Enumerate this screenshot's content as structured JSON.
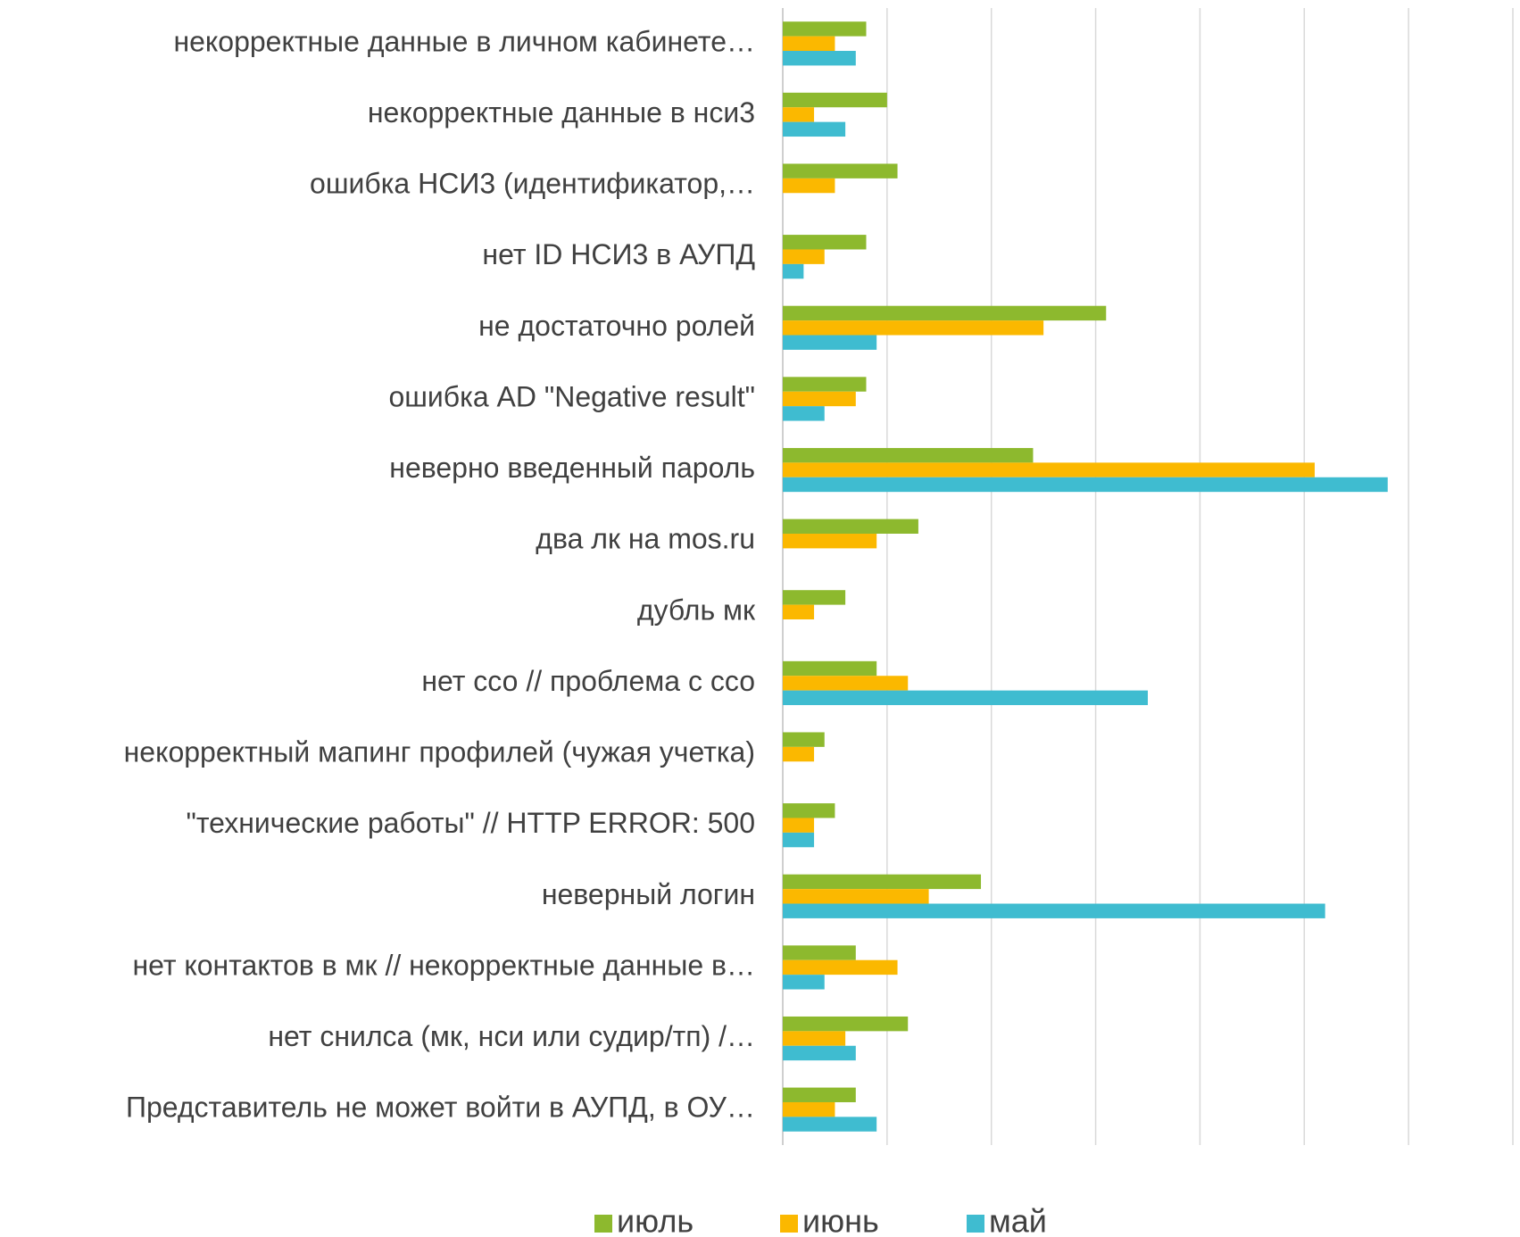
{
  "chart_data": {
    "type": "hbar",
    "categories": [
      "некорректные данные в личном кабинете…",
      "некорректные данные в нси3",
      "ошибка НСИ3 (идентификатор,…",
      "нет ID НСИ3 в АУПД",
      "не достаточно ролей",
      "ошибка AD \"Negative result\"",
      "неверно введенный пароль",
      "два лк на mos.ru",
      "дубль мк",
      "нет ссо // проблема с ссо",
      "некорректный мапинг профилей (чужая учетка)",
      "\"технические работы\" // HTTP ERROR: 500",
      "неверный логин",
      "нет контактов в мк // некорректные данные в…",
      "нет снилса (мк, нси или судир/тп) /…",
      "Представитель не может войти в АУПД, в ОУ…"
    ],
    "series": [
      {
        "name": "июль",
        "color": "#8db92e",
        "values": [
          8,
          10,
          11,
          8,
          31,
          8,
          24,
          13,
          6,
          9,
          4,
          5,
          19,
          7,
          12,
          7
        ]
      },
      {
        "name": "июнь",
        "color": "#fbb800",
        "values": [
          5,
          3,
          5,
          4,
          25,
          7,
          51,
          9,
          3,
          12,
          3,
          3,
          14,
          11,
          6,
          5
        ]
      },
      {
        "name": "май",
        "color": "#3fbcd0",
        "values": [
          7,
          6,
          0,
          2,
          9,
          4,
          58,
          0,
          0,
          35,
          0,
          3,
          52,
          4,
          7,
          9
        ]
      }
    ],
    "xlim": [
      0,
      70
    ],
    "xticks": [
      0,
      10,
      20,
      30,
      40,
      50,
      60,
      70
    ],
    "grid": true,
    "legend": "bottom"
  }
}
